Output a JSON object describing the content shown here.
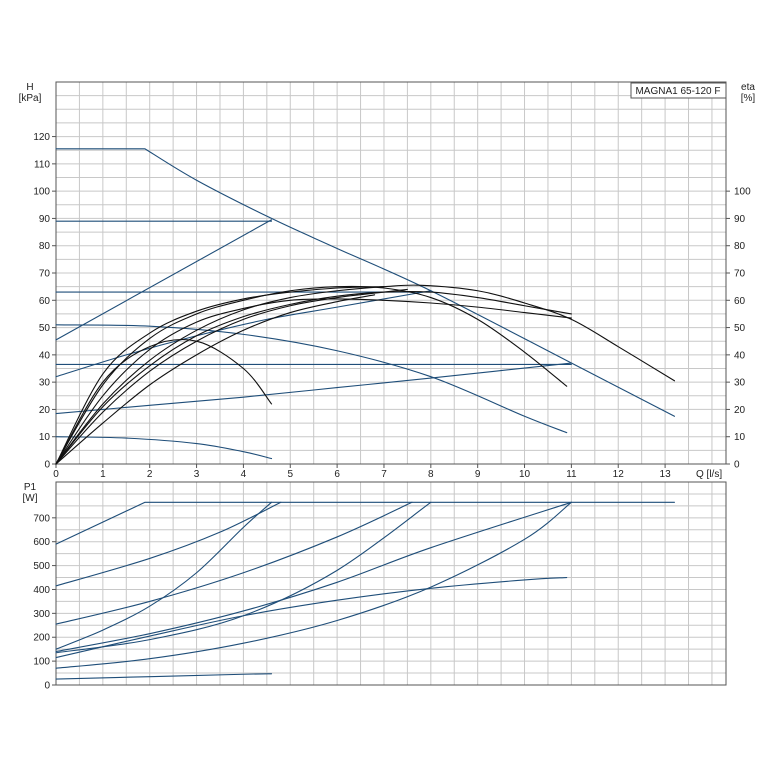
{
  "chart_data": [
    {
      "type": "line",
      "panel": "head-and-efficiency",
      "model_label": "MAGNA1 65-120 F",
      "ylabel_left": [
        "H",
        "[kPa]"
      ],
      "ylabel_right": [
        "eta",
        "[%]"
      ],
      "xlabel": "Q [l/s]",
      "xlim": [
        0,
        14.3
      ],
      "ylim": [
        0,
        140
      ],
      "x_ticks": [
        0,
        1,
        2,
        3,
        4,
        5,
        6,
        7,
        8,
        9,
        10,
        11,
        12,
        13
      ],
      "y_ticks": [
        0,
        10,
        20,
        30,
        40,
        50,
        60,
        70,
        80,
        90,
        100,
        110,
        120
      ],
      "y_right_ticks": [
        0,
        10,
        20,
        30,
        40,
        50,
        60,
        70,
        80,
        90,
        100
      ],
      "colors": {
        "head": "#1f4e79",
        "efficiency": "#111111"
      },
      "head_curves": [
        {
          "x": [
            0,
            1.9,
            3,
            4.6,
            6,
            8,
            11,
            13.2
          ],
          "y": [
            115.5,
            115.5,
            104,
            90,
            79,
            63.5,
            37,
            17.5
          ]
        },
        {
          "x": [
            0,
            4.6
          ],
          "y": [
            89,
            89
          ]
        },
        {
          "x": [
            0,
            4.6
          ],
          "y": [
            45.5,
            89.5
          ]
        },
        {
          "x": [
            0,
            8
          ],
          "y": [
            63,
            63
          ]
        },
        {
          "x": [
            0,
            1.5,
            3,
            4.5,
            6,
            8
          ],
          "y": [
            32,
            40,
            47,
            53,
            57.5,
            63.5
          ]
        },
        {
          "x": [
            0,
            11
          ],
          "y": [
            36.5,
            36.5
          ]
        },
        {
          "x": [
            0,
            2,
            4,
            6,
            8,
            11
          ],
          "y": [
            18.5,
            21.5,
            24.5,
            28,
            31.5,
            37
          ]
        },
        {
          "x": [
            0,
            2,
            4,
            6,
            8,
            10,
            10.9
          ],
          "y": [
            51,
            50.5,
            47.5,
            41.5,
            32,
            17.5,
            11.5
          ]
        },
        {
          "x": [
            0,
            1.5,
            3,
            4,
            4.6
          ],
          "y": [
            10,
            9.5,
            7.5,
            4.5,
            2
          ]
        }
      ],
      "efficiency_curves": [
        {
          "x": [
            0,
            1,
            2,
            3,
            4,
            5,
            6,
            7,
            7.8,
            9,
            10,
            11,
            12,
            13.2
          ],
          "y": [
            0,
            22,
            38,
            49,
            56.5,
            61,
            63.5,
            65,
            65.5,
            63.5,
            59,
            53,
            43,
            30.5
          ]
        },
        {
          "x": [
            0,
            1,
            2,
            3,
            4,
            5,
            6,
            7,
            8,
            9,
            10,
            11
          ],
          "y": [
            0,
            25,
            42,
            52,
            57,
            60,
            60.5,
            60,
            59,
            57.5,
            55.5,
            53.5
          ]
        },
        {
          "x": [
            0,
            1,
            2,
            3,
            4,
            5,
            6,
            7,
            8,
            9,
            10,
            10.9
          ],
          "y": [
            0,
            29,
            46,
            55,
            60,
            63.5,
            65,
            64.5,
            61,
            53,
            41,
            28.5
          ]
        },
        {
          "x": [
            0,
            1,
            2,
            3,
            4,
            4.6
          ],
          "y": [
            0,
            30,
            43,
            45,
            35,
            22
          ]
        },
        {
          "x": [
            0,
            1,
            2,
            3,
            4,
            5,
            6,
            7,
            7.5
          ],
          "y": [
            0,
            19,
            34,
            45,
            53,
            58,
            61,
            63,
            64
          ]
        },
        {
          "x": [
            0,
            1,
            2,
            3,
            4,
            5,
            6,
            7
          ],
          "y": [
            0,
            33,
            48,
            56,
            60.5,
            63,
            64.5,
            65
          ]
        },
        {
          "x": [
            0,
            1,
            2,
            3,
            4,
            5,
            6,
            6.8
          ],
          "y": [
            0,
            15,
            29,
            40,
            49,
            55.5,
            59.5,
            62
          ]
        },
        {
          "x": [
            0,
            1,
            2,
            3,
            4,
            5,
            6,
            7,
            8,
            9,
            10,
            11
          ],
          "y": [
            0,
            21,
            36,
            47,
            54,
            58.5,
            61.5,
            63,
            63,
            61,
            58,
            55
          ]
        }
      ]
    },
    {
      "type": "line",
      "panel": "power",
      "ylabel": [
        "P1",
        "[W]"
      ],
      "xlim": [
        0,
        14.3
      ],
      "ylim": [
        0,
        850
      ],
      "y_ticks": [
        0,
        100,
        200,
        300,
        400,
        500,
        600,
        700
      ],
      "colors": {
        "power": "#1f4e79"
      },
      "power_curves": [
        {
          "x": [
            0,
            1.9,
            13.2
          ],
          "y": [
            590,
            765,
            765
          ]
        },
        {
          "x": [
            0,
            2,
            3.5,
            4.8
          ],
          "y": [
            415,
            530,
            640,
            765
          ]
        },
        {
          "x": [
            0,
            2,
            4,
            6,
            7.6
          ],
          "y": [
            255,
            350,
            470,
            620,
            765
          ]
        },
        {
          "x": [
            0,
            2,
            4,
            6,
            8,
            11
          ],
          "y": [
            140,
            215,
            310,
            430,
            575,
            765
          ]
        },
        {
          "x": [
            0,
            2,
            4,
            6,
            8,
            10,
            11
          ],
          "y": [
            70,
            110,
            175,
            270,
            410,
            610,
            765
          ]
        },
        {
          "x": [
            0,
            2,
            4,
            6,
            8,
            10,
            10.9
          ],
          "y": [
            115,
            205,
            290,
            355,
            405,
            440,
            450
          ]
        },
        {
          "x": [
            0,
            2,
            4,
            6,
            8
          ],
          "y": [
            135,
            190,
            290,
            480,
            765
          ]
        },
        {
          "x": [
            0,
            1,
            2,
            3,
            4,
            4.6
          ],
          "y": [
            150,
            230,
            330,
            470,
            660,
            765
          ]
        },
        {
          "x": [
            0,
            2,
            4,
            4.6
          ],
          "y": [
            25,
            35,
            45,
            47
          ]
        }
      ]
    }
  ]
}
